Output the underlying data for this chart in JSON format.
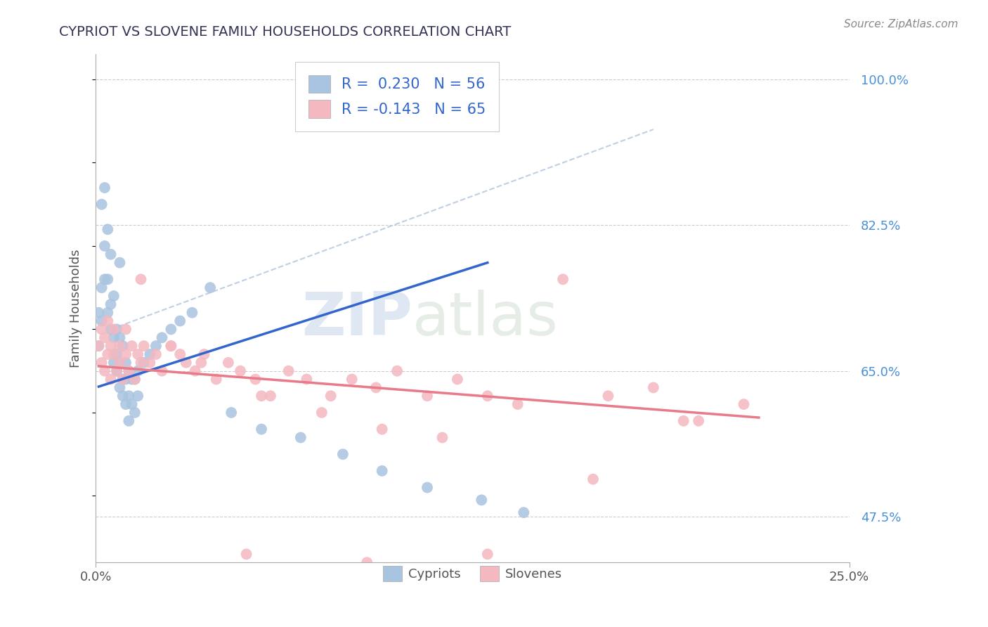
{
  "title": "CYPRIOT VS SLOVENE FAMILY HOUSEHOLDS CORRELATION CHART",
  "source": "Source: ZipAtlas.com",
  "ylabel": "Family Households",
  "xlim": [
    0.0,
    0.25
  ],
  "ylim": [
    0.42,
    1.03
  ],
  "ytick_positions": [
    0.475,
    0.65,
    0.825,
    1.0
  ],
  "ytick_labels": [
    "47.5%",
    "65.0%",
    "82.5%",
    "100.0%"
  ],
  "grid_color": "#cccccc",
  "background_color": "#ffffff",
  "cypriot_color": "#a8c4e0",
  "slovene_color": "#f4b8c0",
  "cypriot_line_color": "#3366cc",
  "slovene_line_color": "#e87a8a",
  "trendline_dashed_color": "#b0c4de",
  "R_cypriot": 0.23,
  "N_cypriot": 56,
  "R_slovene": -0.143,
  "N_slovene": 65,
  "legend_labels": [
    "Cypriots",
    "Slovenes"
  ],
  "watermark_top": "ZIP",
  "watermark_bot": "atlas",
  "watermark_color": "#ccd8ea"
}
